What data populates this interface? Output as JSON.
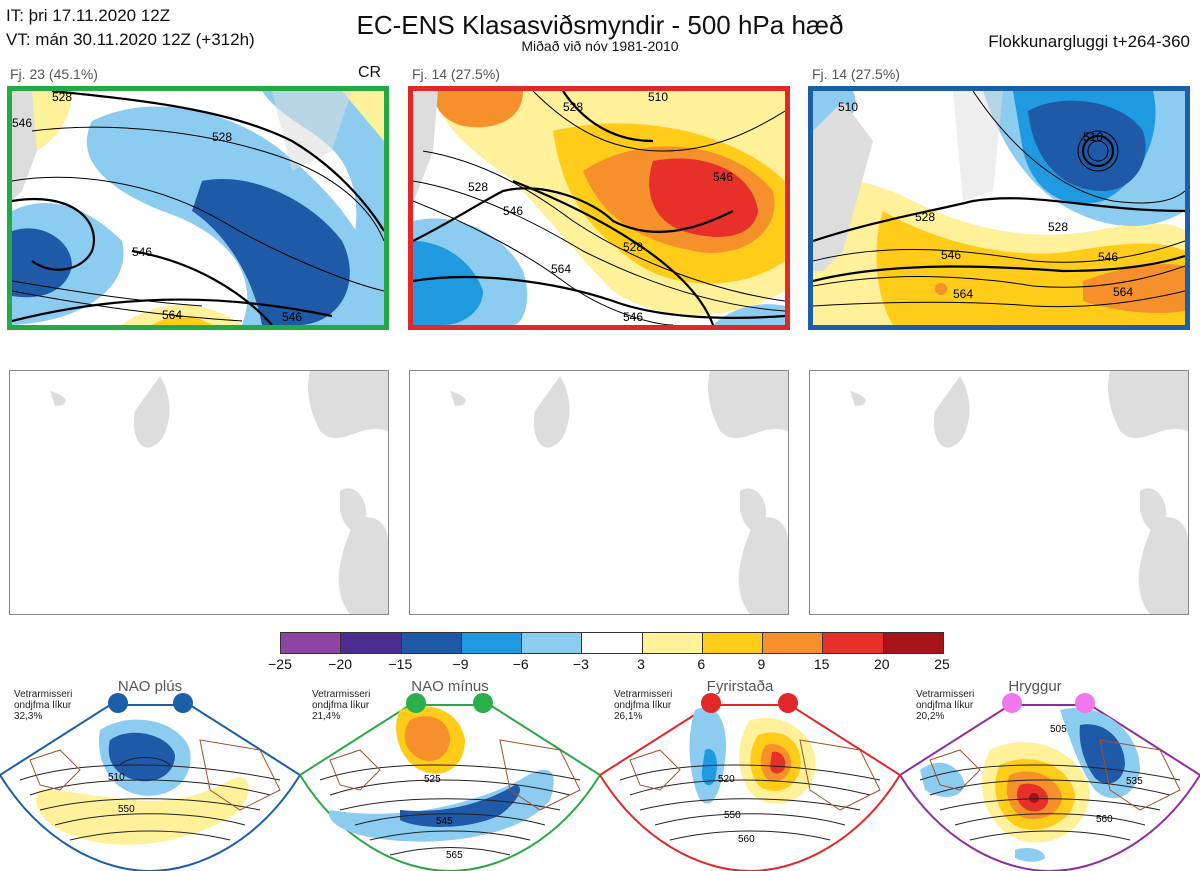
{
  "header": {
    "it_line": "IT: þri 17.11.2020 12Z",
    "vt_line": "VT: mán 30.11.2020 12Z  (+312h)",
    "title": "EC-ENS Klasasviðsmyndir - 500 hPa hæð",
    "subtitle": "Miðað við nóv 1981-2010",
    "window": "Flokkunargluggi t+264-360"
  },
  "clusters": [
    {
      "label": "Fj. 23 (45.1%)",
      "tag": "CR",
      "frame_color": "#22aa44",
      "contours": [
        "528",
        "546",
        "528",
        "546",
        "564",
        "546"
      ]
    },
    {
      "label": "Fj. 14 (27.5%)",
      "tag": "",
      "frame_color": "#e02828",
      "contours": [
        "528",
        "510",
        "528",
        "546",
        "546",
        "528",
        "564",
        "546"
      ]
    },
    {
      "label": "Fj. 14 (27.5%)",
      "tag": "",
      "frame_color": "#1a5fa8",
      "contours": [
        "510",
        "528",
        "510",
        "528",
        "546",
        "546",
        "564",
        "564"
      ]
    }
  ],
  "colorbar": {
    "colors": [
      "#8e44a0",
      "#4b2d8f",
      "#1e5aa8",
      "#1f9ae0",
      "#8cccf0",
      "#ffffff",
      "#fff09a",
      "#ffcc1a",
      "#f5902a",
      "#e8302a",
      "#a8131a"
    ],
    "ticks": [
      "−25",
      "−20",
      "−15",
      "−9",
      "−6",
      "−3",
      "3",
      "6",
      "9",
      "15",
      "20",
      "25"
    ]
  },
  "regimes": [
    {
      "title": "NAO plús",
      "note": "Vetrarmisseri ondjfma líkur 32,3%",
      "color": "#1a5fa8",
      "dot_color": "#1a5fa8",
      "contours": [
        "510",
        "550"
      ]
    },
    {
      "title": "NAO mínus",
      "note": "Vetrarmisseri ondjfma líkur 21,4%",
      "color": "#2aa845",
      "dot_color": "#2ab04a",
      "contours": [
        "525",
        "545",
        "565"
      ]
    },
    {
      "title": "Fyrirstaða",
      "note": "Vetrarmisseri ondjfma líkur 26,1%",
      "color": "#e02828",
      "dot_color": "#e02828",
      "contours": [
        "520",
        "550",
        "560"
      ]
    },
    {
      "title": "Hryggur",
      "note": "Vetrarmisseri ondjfma líkur 20,2%",
      "color": "#8e2ca0",
      "dot_color": "#ee77ee",
      "contours": [
        "505",
        "535",
        "560"
      ]
    }
  ]
}
